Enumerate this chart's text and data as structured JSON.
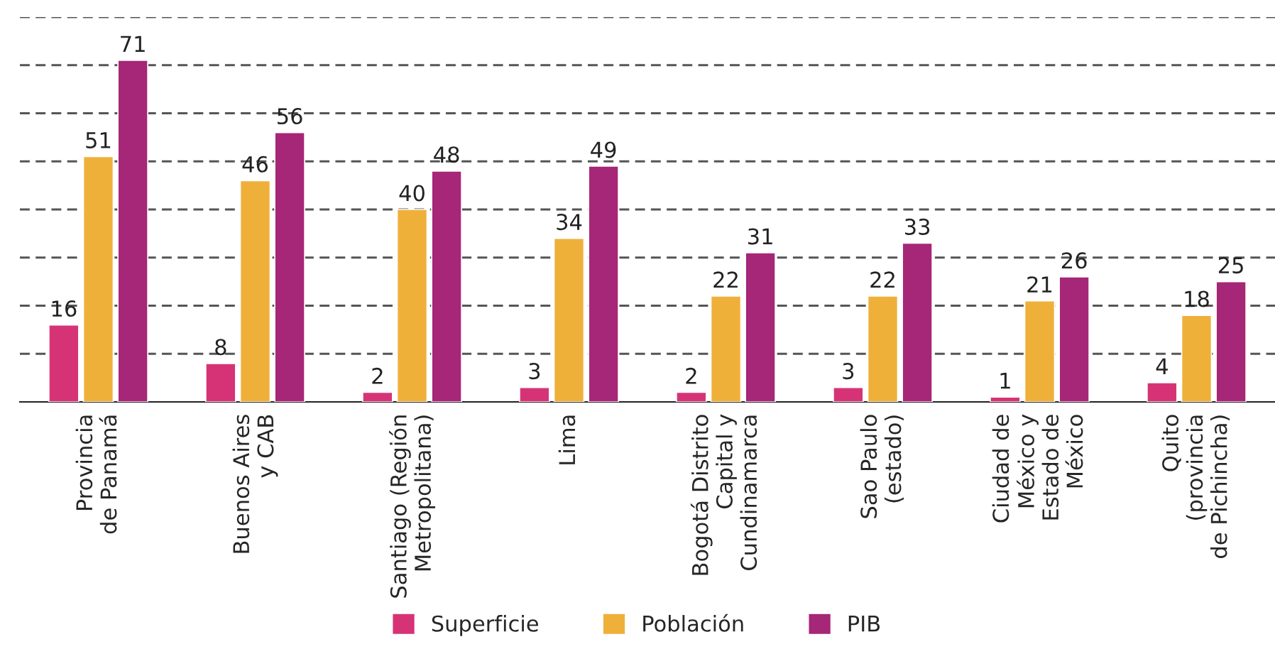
{
  "chart_data": {
    "type": "bar",
    "categories": [
      "Provincia\nde Panamá",
      "Buenos Aires\ny CAB",
      "Santiago (Región\nMetropolitana)",
      "Lima",
      "Bogotá Distrito\nCapital y\nCundinamarca",
      "Sao Paulo\n(estado)",
      "Ciudad de\nMéxico y\nEstado de\nMéxico",
      "Quito\n(provincia\nde Pichincha)"
    ],
    "series": [
      {
        "name": "Superficie",
        "color": "#d63377",
        "values": [
          16,
          8,
          2,
          3,
          2,
          3,
          1,
          4
        ]
      },
      {
        "name": "Población",
        "color": "#efb03a",
        "values": [
          51,
          46,
          40,
          34,
          22,
          22,
          21,
          18
        ]
      },
      {
        "name": "PIB",
        "color": "#a62677",
        "values": [
          71,
          56,
          48,
          49,
          31,
          33,
          26,
          25
        ]
      }
    ],
    "ylim": [
      0,
      80
    ],
    "yticks": [
      {
        "value": 10,
        "label": null
      },
      {
        "value": 20,
        "label": null
      },
      {
        "value": 30,
        "label": null
      },
      {
        "value": 40,
        "label": null
      },
      {
        "value": 50,
        "label": null
      },
      {
        "value": 60,
        "label": null
      },
      {
        "value": 70,
        "label": null
      },
      {
        "value": 80,
        "label": null
      }
    ],
    "tick_labels": "x",
    "grid": "y",
    "data_labels": true,
    "legend": "bottom"
  }
}
